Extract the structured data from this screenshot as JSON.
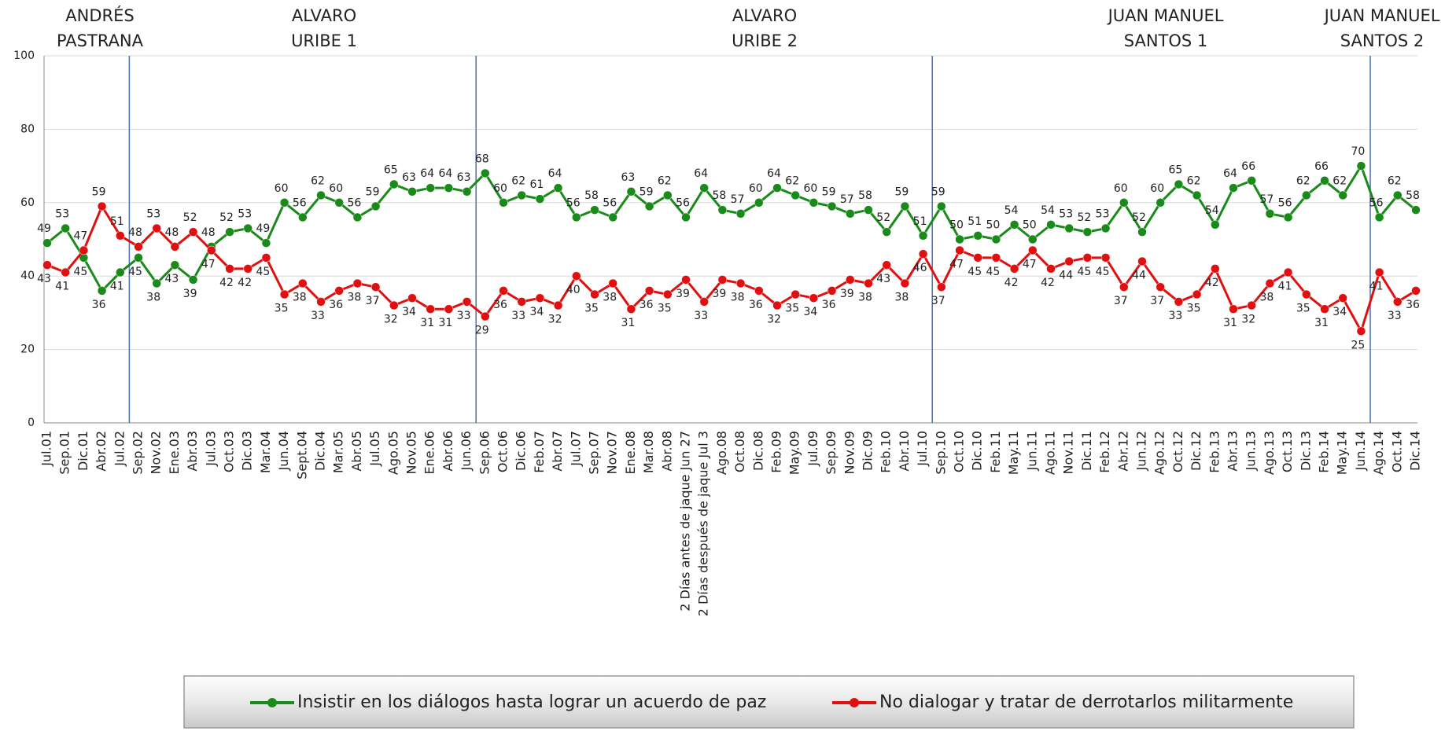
{
  "chart_data": {
    "type": "line",
    "periods": [
      [
        "ANDRÉS",
        "PASTRANA"
      ],
      [
        "ALVARO",
        "URIBE 1"
      ],
      [
        "ALVARO",
        "URIBE 2"
      ],
      [
        "JUAN MANUEL",
        "SANTOS 1"
      ],
      [
        "JUAN MANUEL",
        "SANTOS 2"
      ]
    ],
    "categories": [
      "Jul.01",
      "Sep.01",
      "Dic.01",
      "Abr.02",
      "Jul.02",
      "Sep.02",
      "Nov.02",
      "Ene.03",
      "Abr.03",
      "Jul.03",
      "Oct.03",
      "Dic.03",
      "Mar.04",
      "Jun.04",
      "Sept.04",
      "Dic.04",
      "Mar.05",
      "Abr.05",
      "Jul.05",
      "Ago.05",
      "Nov.05",
      "Ene.06",
      "Abr.06",
      "Jun.06",
      "Sep.06",
      "Oct.06",
      "Dic.06",
      "Feb.07",
      "Abr.07",
      "Jul.07",
      "Sep.07",
      "Nov.07",
      "Ene.08",
      "Mar.08",
      "Abr.08",
      "2 Días antes de jaque Jun 27",
      "2 Días después de jaque Jul 3",
      "Ago.08",
      "Oct.08",
      "Dic.08",
      "Feb.09",
      "May.09",
      "Jul.09",
      "Sep.09",
      "Nov.09",
      "Dic.09",
      "Feb.10",
      "Abr.10",
      "Jul.10",
      "Sep.10",
      "Oct.10",
      "Dic.10",
      "Feb.11",
      "May.11",
      "Jun.11",
      "Ago.11",
      "Nov.11",
      "Dic.11",
      "Feb.12",
      "Abr.12",
      "Jun.12",
      "Ago.12",
      "Oct.12",
      "Dic.12",
      "Feb.13",
      "Abr.13",
      "Jun.13",
      "Ago.13",
      "Oct.13",
      "Dic.13",
      "Feb.14",
      "May.14",
      "Jun.14",
      "Ago.14",
      "Oct.14",
      "Dic.14"
    ],
    "series": [
      {
        "name": "Insistir en los diálogos hasta lograr un acuerdo de paz",
        "color": "#1a8a1a",
        "values": [
          49,
          53,
          45,
          36,
          41,
          45,
          38,
          43,
          39,
          48,
          52,
          53,
          49,
          60,
          56,
          62,
          60,
          56,
          59,
          65,
          63,
          64,
          64,
          63,
          68,
          60,
          62,
          61,
          64,
          56,
          58,
          56,
          63,
          59,
          62,
          56,
          64,
          58,
          57,
          60,
          64,
          62,
          60,
          59,
          57,
          58,
          52,
          59,
          51,
          59,
          50,
          51,
          50,
          54,
          50,
          54,
          53,
          52,
          53,
          60,
          52,
          60,
          65,
          62,
          54,
          64,
          66,
          57,
          56,
          62,
          66,
          62,
          70,
          56,
          62,
          58
        ]
      },
      {
        "name": "No dialogar y tratar de derrotarlos militarmente",
        "color": "#e01010",
        "values": [
          43,
          41,
          47,
          59,
          51,
          48,
          53,
          48,
          52,
          47,
          42,
          42,
          45,
          35,
          38,
          33,
          36,
          38,
          37,
          32,
          34,
          31,
          31,
          33,
          29,
          36,
          33,
          34,
          32,
          40,
          35,
          38,
          31,
          36,
          35,
          39,
          33,
          39,
          38,
          36,
          32,
          35,
          34,
          36,
          39,
          38,
          43,
          38,
          46,
          37,
          47,
          45,
          45,
          42,
          47,
          42,
          44,
          45,
          45,
          37,
          44,
          37,
          33,
          35,
          42,
          31,
          32,
          38,
          41,
          35,
          31,
          34,
          25,
          41,
          33,
          36
        ]
      }
    ],
    "ylim": [
      0,
      100
    ],
    "yticks": [
      0,
      20,
      40,
      60,
      80,
      100
    ],
    "grid": true
  }
}
